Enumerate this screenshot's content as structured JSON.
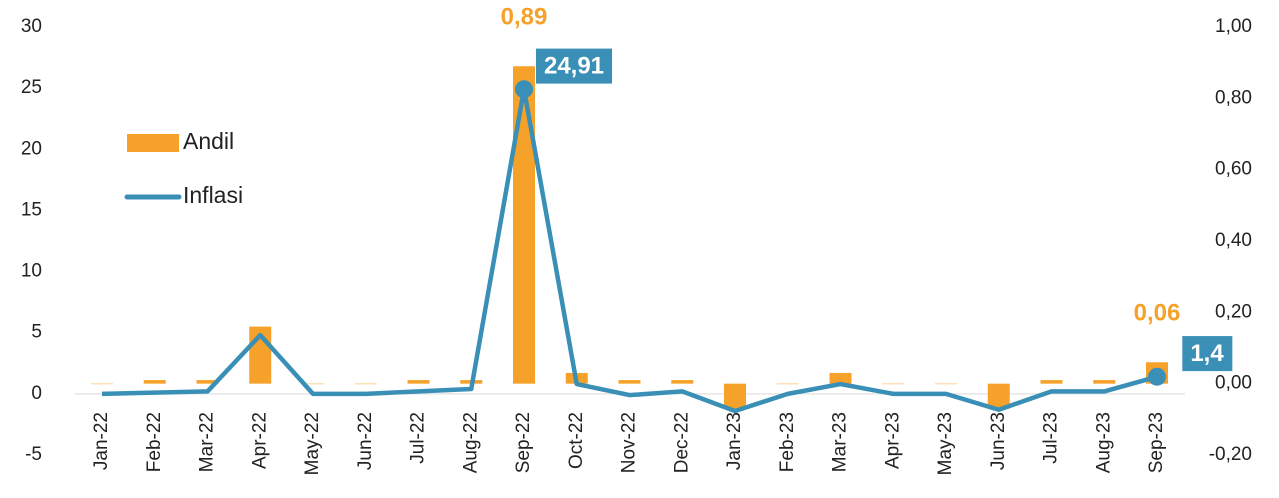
{
  "chart_data": {
    "type": "combo",
    "categories": [
      "Jan-22",
      "Feb-22",
      "Mar-22",
      "Apr-22",
      "May-22",
      "Jun-22",
      "Jul-22",
      "Aug-22",
      "Sep-22",
      "Oct-22",
      "Nov-22",
      "Dec-22",
      "Jan-23",
      "Feb-23",
      "Mar-23",
      "Apr-23",
      "May-23",
      "Jun-23",
      "Jul-23",
      "Aug-23",
      "Sep-23"
    ],
    "series": [
      {
        "name": "Andil",
        "type": "bar",
        "axis": "y2",
        "color": "#f5a12a",
        "values": [
          0,
          0.01,
          0.01,
          0.16,
          0,
          0,
          0.01,
          0.01,
          0.89,
          0.03,
          0.01,
          0.01,
          -0.07,
          0,
          0.03,
          0,
          0,
          -0.07,
          0.01,
          0.01,
          0.06
        ],
        "value_labels": [
          null,
          null,
          null,
          null,
          null,
          null,
          null,
          null,
          "0,89",
          null,
          null,
          null,
          null,
          null,
          null,
          null,
          null,
          null,
          null,
          null,
          "0,06"
        ]
      },
      {
        "name": "Inflasi",
        "type": "line",
        "axis": "y",
        "color": "#3a8fb7",
        "values": [
          0,
          0.1,
          0.2,
          4.8,
          0,
          0,
          0.2,
          0.4,
          24.91,
          0.8,
          -0.1,
          0.2,
          -1.4,
          0,
          0.8,
          0,
          0,
          -1.3,
          0.2,
          0.2,
          1.4
        ],
        "value_labels": [
          null,
          null,
          null,
          null,
          null,
          null,
          null,
          null,
          "24,91",
          null,
          null,
          null,
          null,
          null,
          null,
          null,
          null,
          null,
          null,
          null,
          "1,4"
        ]
      }
    ],
    "ylim": [
      -5,
      30
    ],
    "yticks": [
      -5,
      0,
      5,
      10,
      15,
      20,
      25,
      30
    ],
    "y2lim": [
      -0.2,
      1.0
    ],
    "y2ticks": [
      {
        "value": -0.2,
        "label": "-0,20"
      },
      {
        "value": 0,
        "label": "0,00"
      },
      {
        "value": 0.2,
        "label": "0,20"
      },
      {
        "value": 0.4,
        "label": "0,40"
      },
      {
        "value": 0.6,
        "label": "0,60"
      },
      {
        "value": 0.8,
        "label": "0,80"
      },
      {
        "value": 1.0,
        "label": "1,00"
      }
    ],
    "legend": "left"
  }
}
